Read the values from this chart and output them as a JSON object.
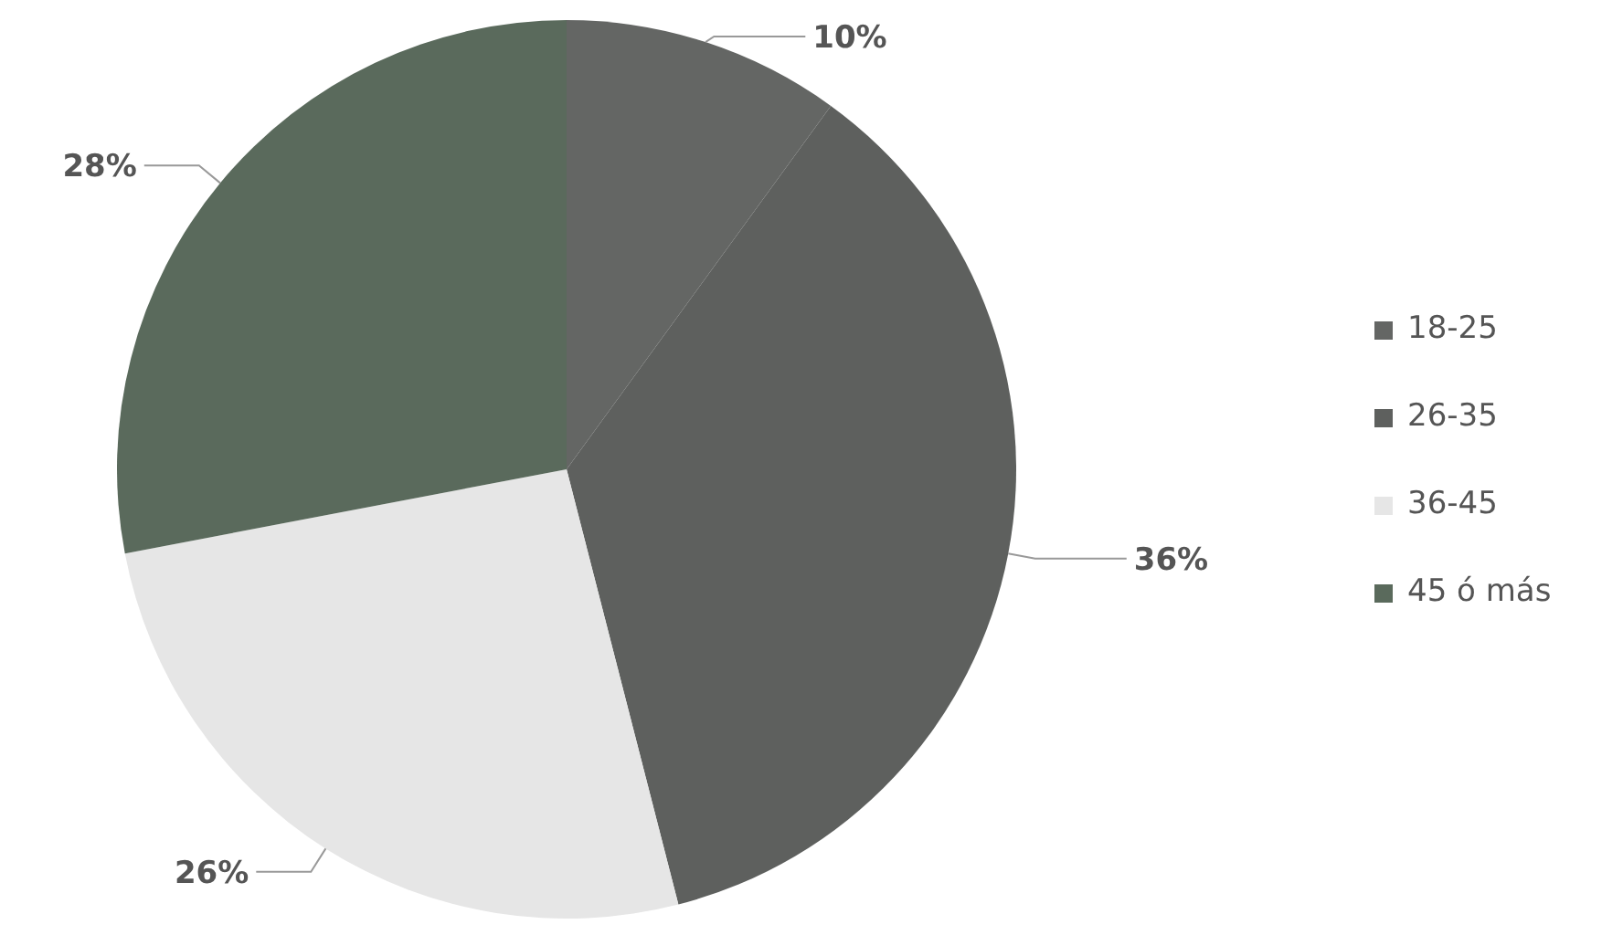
{
  "chart_data": {
    "type": "pie",
    "categories": [
      "18-25",
      "26-35",
      "36-45",
      "45 ó más"
    ],
    "values": [
      10,
      36,
      26,
      28
    ],
    "colors": [
      "#646664",
      "#5e605e",
      "#e6e6e6",
      "#5a6a5c"
    ],
    "value_labels": [
      "10%",
      "36%",
      "26%",
      "28%"
    ],
    "legend": "right"
  }
}
